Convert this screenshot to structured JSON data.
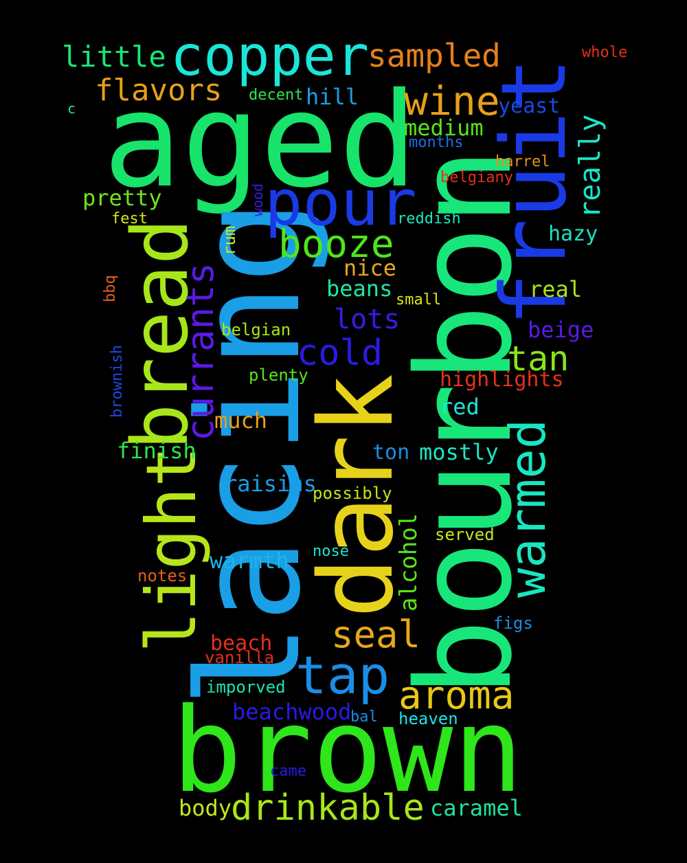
{
  "words": [
    {
      "text": "aged",
      "color": "#18e36a"
    },
    {
      "text": "bourbon",
      "color": "#18e67a"
    },
    {
      "text": "lacing",
      "color": "#1a9ee6"
    },
    {
      "text": "brown",
      "color": "#2ee61a"
    },
    {
      "text": "dark",
      "color": "#e6d21a"
    },
    {
      "text": "fruit",
      "color": "#1a3ae6"
    },
    {
      "text": "light",
      "color": "#b6e61a"
    },
    {
      "text": "bread",
      "color": "#a8e61a"
    },
    {
      "text": "copper",
      "color": "#1ae6d8"
    },
    {
      "text": "pour",
      "color": "#1a3ae6"
    },
    {
      "text": "warmed",
      "color": "#1ae6c0"
    },
    {
      "text": "tap",
      "color": "#1a8ee6"
    },
    {
      "text": "currants",
      "color": "#5a1ae6"
    },
    {
      "text": "booze",
      "color": "#4ee61a"
    },
    {
      "text": "wine",
      "color": "#e6a01a"
    },
    {
      "text": "sampled",
      "color": "#e6801a"
    },
    {
      "text": "aroma",
      "color": "#e6c81a"
    },
    {
      "text": "flavors",
      "color": "#e6a01a"
    },
    {
      "text": "little",
      "color": "#1ae676"
    },
    {
      "text": "cold",
      "color": "#2a1ae6"
    },
    {
      "text": "seal",
      "color": "#e6a81a"
    },
    {
      "text": "drinkable",
      "color": "#a8e61a"
    },
    {
      "text": "tan",
      "color": "#86e61a"
    },
    {
      "text": "really",
      "color": "#1ae6c8"
    },
    {
      "text": "alcohol",
      "color": "#56e61a"
    },
    {
      "text": "lots",
      "color": "#3a1ae6"
    },
    {
      "text": "medium",
      "color": "#56e61a"
    },
    {
      "text": "pretty",
      "color": "#6ee61a"
    },
    {
      "text": "hill",
      "color": "#1a9ee6"
    },
    {
      "text": "yeast",
      "color": "#1a4ae6"
    },
    {
      "text": "hazy",
      "color": "#1ae6c0"
    },
    {
      "text": "nice",
      "color": "#e6a81a"
    },
    {
      "text": "beans",
      "color": "#1ae6a8"
    },
    {
      "text": "real",
      "color": "#a8e61a"
    },
    {
      "text": "beige",
      "color": "#5a1ae6"
    },
    {
      "text": "highlights",
      "color": "#e6301a"
    },
    {
      "text": "red",
      "color": "#1ae6d8"
    },
    {
      "text": "mostly",
      "color": "#1ae6c8"
    },
    {
      "text": "ton",
      "color": "#1a8ee6"
    },
    {
      "text": "finish",
      "color": "#2ee64e"
    },
    {
      "text": "much",
      "color": "#e6a01a"
    },
    {
      "text": "raisins",
      "color": "#1a9ee6"
    },
    {
      "text": "possibly",
      "color": "#c8e61a"
    },
    {
      "text": "warmth",
      "color": "#1ab6e6"
    },
    {
      "text": "nose",
      "color": "#1ae6d0"
    },
    {
      "text": "served",
      "color": "#c8e61a"
    },
    {
      "text": "beach",
      "color": "#e6301a"
    },
    {
      "text": "vanilla",
      "color": "#e6301a"
    },
    {
      "text": "imporved",
      "color": "#1ae6b0"
    },
    {
      "text": "beachwood",
      "color": "#2a1ae6"
    },
    {
      "text": "bal",
      "color": "#1a8ee6"
    },
    {
      "text": "heaven",
      "color": "#1ae6e6"
    },
    {
      "text": "came",
      "color": "#2a1ae6"
    },
    {
      "text": "body",
      "color": "#c8e61a"
    },
    {
      "text": "caramel",
      "color": "#1ae6a0"
    },
    {
      "text": "figs",
      "color": "#1a8ee6"
    },
    {
      "text": "notes",
      "color": "#e6601a"
    },
    {
      "text": "brownish",
      "color": "#1a4ae6"
    },
    {
      "text": "plenty",
      "color": "#56e61a"
    },
    {
      "text": "belgian",
      "color": "#a8e61a"
    },
    {
      "text": "small",
      "color": "#d8e61a"
    },
    {
      "text": "bbq",
      "color": "#e6601a"
    },
    {
      "text": "rum",
      "color": "#c8e61a"
    },
    {
      "text": "fest",
      "color": "#d8e61a"
    },
    {
      "text": "wood",
      "color": "#3a1ae6"
    },
    {
      "text": "reddish",
      "color": "#1ae6c0"
    },
    {
      "text": "belgiany",
      "color": "#e6301a"
    },
    {
      "text": "barrel",
      "color": "#e6901a"
    },
    {
      "text": "months",
      "color": "#1a6ee6"
    },
    {
      "text": "decent",
      "color": "#2ee64e"
    },
    {
      "text": "c",
      "color": "#1ae6a8"
    },
    {
      "text": "whole",
      "color": "#e6301a"
    }
  ]
}
